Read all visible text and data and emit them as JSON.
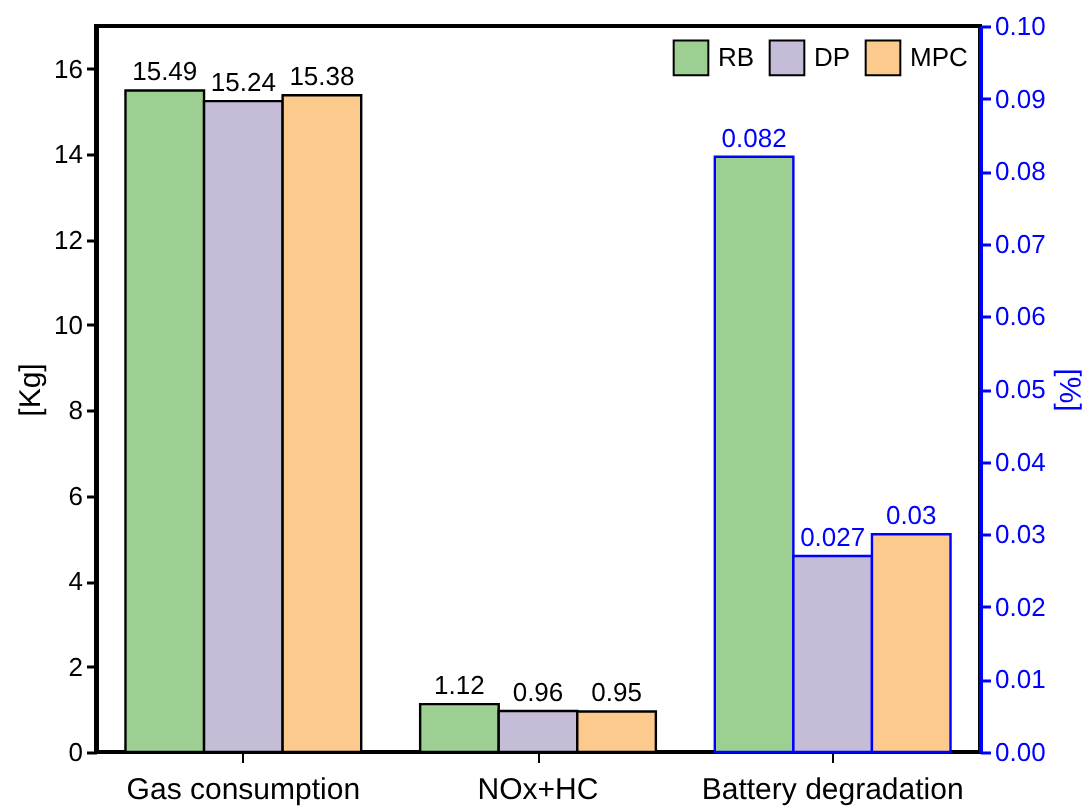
{
  "chart_data": {
    "type": "bar",
    "categories": [
      "Gas consumption",
      "NOx+HC",
      "Battery degradation"
    ],
    "ylabel": "[Kg]",
    "y2label": "[%]",
    "ylim": [
      0,
      17
    ],
    "yticks": [
      0,
      2,
      4,
      6,
      8,
      10,
      12,
      14,
      16
    ],
    "y2lim": [
      0,
      0.1
    ],
    "y2ticks": [
      {
        "value": 0,
        "label": "0.00"
      },
      0.01,
      0.02,
      0.03,
      0.04,
      0.05,
      0.06,
      0.07,
      0.08,
      0.09,
      {
        "value": 0.1,
        "label": "0.10"
      }
    ],
    "series": [
      {
        "name": "RB",
        "color": "#9dcf93",
        "values": [
          15.49,
          1.12,
          null
        ]
      },
      {
        "name": "DP",
        "color": "#c5bcd8",
        "values": [
          15.24,
          0.96,
          null
        ]
      },
      {
        "name": "MPC",
        "color": "#fdca8e",
        "values": [
          15.38,
          0.95,
          null
        ]
      },
      {
        "color": "#9dcf93",
        "axis": "y2",
        "values": [
          null,
          null,
          0.082
        ]
      },
      {
        "color": "#c5bcd8",
        "axis": "y2",
        "values": [
          null,
          null,
          0.027
        ]
      },
      {
        "color": "#fdca8e",
        "axis": "y2",
        "values": [
          null,
          null,
          0.03
        ]
      }
    ],
    "data_labels": true,
    "grid": false,
    "legend": "top right"
  }
}
